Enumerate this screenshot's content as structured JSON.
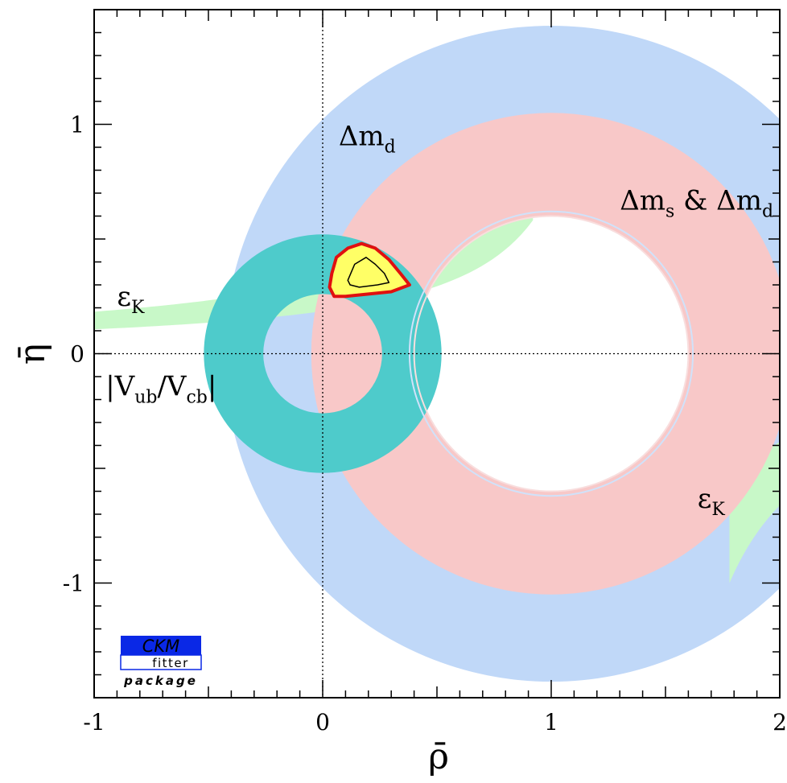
{
  "chart_data": {
    "type": "contour",
    "xlabel": "ρ̄",
    "ylabel": "η̄",
    "xlim": [
      -1,
      2
    ],
    "ylim": [
      -1.5,
      1.5
    ],
    "x_ticks": [
      {
        "value": -1,
        "label": "-1"
      },
      {
        "value": 0,
        "label": "0"
      },
      {
        "value": 1,
        "label": "1"
      },
      {
        "value": 2,
        "label": "2"
      }
    ],
    "y_ticks": [
      {
        "value": 1,
        "label": "1"
      },
      {
        "value": 0,
        "label": "0"
      },
      {
        "value": -1,
        "label": "-1"
      }
    ],
    "reference_lines": {
      "x": 0,
      "y": 0,
      "style": "dotted"
    },
    "constraints": [
      {
        "name": "Δm_d",
        "shape": "annulus",
        "center": [
          1,
          0
        ],
        "radius_range": [
          0.62,
          1.43
        ],
        "color": "#c0d8f8"
      },
      {
        "name": "Δm_s & Δm_d",
        "shape": "annulus",
        "center": [
          1,
          0
        ],
        "radius_range": [
          0.6,
          1.05
        ],
        "color": "#f8c8c8"
      },
      {
        "name": "|V_ub/V_cb|",
        "shape": "annulus",
        "center": [
          0,
          0
        ],
        "radius_range": [
          0.26,
          0.52
        ],
        "color": "#4ecbcb"
      },
      {
        "name": "ε_K",
        "shape": "hyperbolic band",
        "color": "#c8f8c8"
      }
    ],
    "fit_region": {
      "description": "allowed region (yellow, red outline) with inner contour",
      "center": [
        0.19,
        0.35
      ],
      "outer_contour": [
        [
          0.04,
          0.35
        ],
        [
          0.06,
          0.42
        ],
        [
          0.11,
          0.46
        ],
        [
          0.17,
          0.48
        ],
        [
          0.23,
          0.46
        ],
        [
          0.29,
          0.41
        ],
        [
          0.34,
          0.35
        ],
        [
          0.38,
          0.3
        ],
        [
          0.3,
          0.27
        ],
        [
          0.2,
          0.26
        ],
        [
          0.1,
          0.25
        ],
        [
          0.05,
          0.25
        ],
        [
          0.03,
          0.29
        ]
      ],
      "inner_contour": [
        [
          0.11,
          0.32
        ],
        [
          0.14,
          0.39
        ],
        [
          0.19,
          0.42
        ],
        [
          0.23,
          0.39
        ],
        [
          0.27,
          0.35
        ],
        [
          0.29,
          0.31
        ],
        [
          0.24,
          0.3
        ],
        [
          0.16,
          0.29
        ],
        [
          0.12,
          0.3
        ]
      ],
      "fill_color": "#ffff66",
      "outline_color": "#e01010"
    },
    "labels": [
      {
        "text": "Δm",
        "sub": "d",
        "at": [
          0.07,
          0.88
        ]
      },
      {
        "text": "Δm",
        "sub": "s",
        "tail": " & Δm",
        "tail_sub": "d",
        "at": [
          1.3,
          0.6
        ]
      },
      {
        "text": "|V",
        "sub": "ub",
        "tail": "/V",
        "tail_sub": "cb",
        "tail2": "|",
        "at": [
          -0.95,
          -0.21
        ]
      },
      {
        "text": "ε",
        "sub": "K",
        "at": [
          -0.9,
          0.18
        ]
      },
      {
        "text": "ε",
        "sub": "K",
        "at": [
          1.64,
          -0.7
        ]
      }
    ]
  },
  "logo": {
    "top": "CKM",
    "middle": "fitter",
    "bottom": "package",
    "colors": {
      "blue": "#0a28e6",
      "red": "#e01010"
    }
  }
}
